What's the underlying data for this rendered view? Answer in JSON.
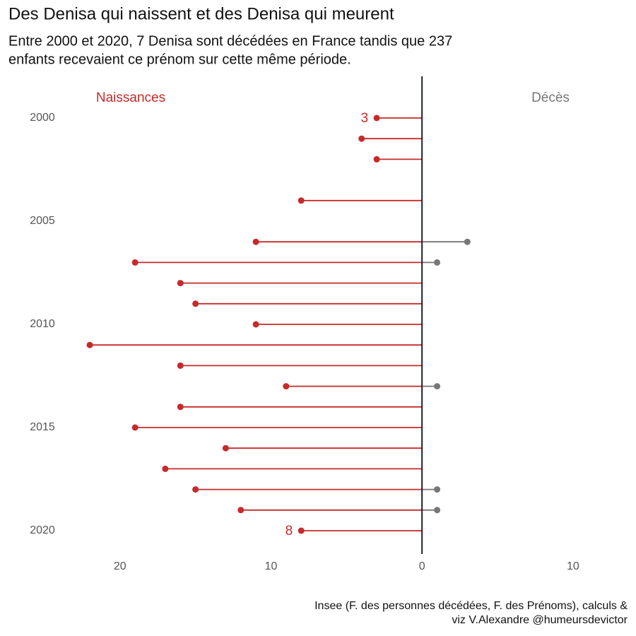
{
  "chart_data": {
    "type": "lollipop",
    "title": "Des Denisa qui naissent et des Denisa qui meurent",
    "subtitle": [
      "Entre 2000 et 2020, 7 Denisa sont décédées en France tandis que 237",
      "enfants recevaient ce prénom sur cette même période."
    ],
    "caption": [
      "Insee (F. des personnes décédées, F. des Prénoms), calculs &",
      "viz V.Alexandre @humeursdevictor"
    ],
    "y": [
      2000,
      2001,
      2002,
      2003,
      2004,
      2005,
      2006,
      2007,
      2008,
      2009,
      2010,
      2011,
      2012,
      2013,
      2014,
      2015,
      2016,
      2017,
      2018,
      2019,
      2020
    ],
    "series": [
      {
        "name": "Naissances",
        "color": "#c62a2a",
        "side": "left",
        "values": [
          3,
          4,
          3,
          null,
          8,
          null,
          11,
          19,
          16,
          15,
          11,
          22,
          16,
          9,
          16,
          19,
          13,
          17,
          15,
          12,
          8
        ]
      },
      {
        "name": "Décès",
        "color": "#777777",
        "side": "right",
        "values": [
          null,
          null,
          null,
          null,
          null,
          null,
          3,
          1,
          null,
          null,
          null,
          null,
          null,
          1,
          null,
          null,
          null,
          null,
          1,
          1,
          null
        ]
      }
    ],
    "ylim": [
      2000,
      2020
    ],
    "yticks": [
      2000,
      2005,
      2010,
      2015,
      2020
    ],
    "xlim": [
      -23.5,
      13
    ],
    "xticks": [
      {
        "value": -20,
        "label": "20"
      },
      {
        "value": -10,
        "label": "10"
      },
      0,
      10
    ]
  }
}
